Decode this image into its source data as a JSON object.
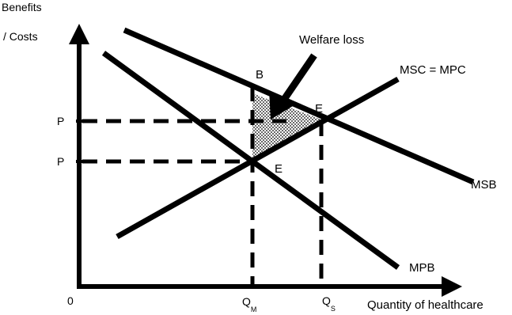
{
  "axes": {
    "y_label_line1": "Benefits",
    "y_label_line2": "/ Costs",
    "x_label": "Quantity of healthcare",
    "origin_label": "0"
  },
  "curves": {
    "msc_label": "MSC = MPC",
    "msb_label": "MSB",
    "mpb_label": "MPB"
  },
  "points": {
    "b_label": "B",
    "e_social_label": "E",
    "e_market_label": "E"
  },
  "prices": {
    "p_social_label": "P",
    "p_market_label": "P"
  },
  "quantities": {
    "qm_label": "Q",
    "qm_subscript": "M",
    "qs_label": "Q",
    "qs_subscript": "S"
  },
  "annotation": {
    "welfare_loss_label": "Welfare loss"
  }
}
